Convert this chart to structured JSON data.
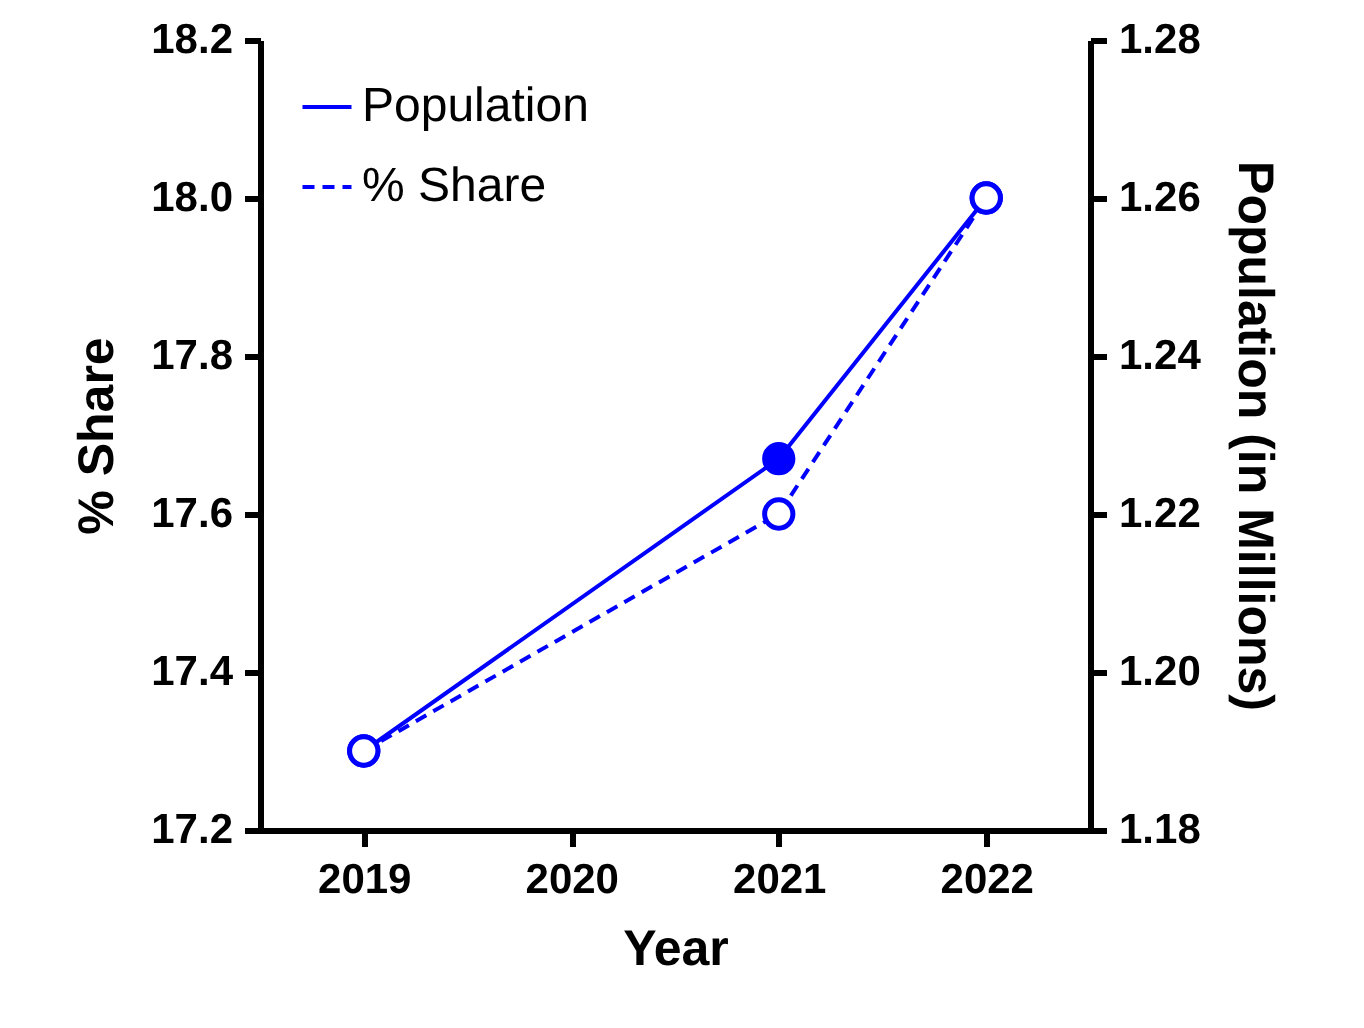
{
  "chart_data": {
    "type": "line",
    "xlabel": "Year",
    "ylabel": "% Share",
    "y2label": "Population (in Millions)",
    "x": [
      2019,
      2021,
      2022
    ],
    "series": [
      {
        "name": "Population",
        "color": "#0000ff",
        "axis": "y2",
        "line_style": "solid",
        "values": [
          1.19,
          1.227,
          1.26
        ]
      },
      {
        "name": "% Share",
        "color": "#0000ff",
        "line_style": "dashed",
        "values": [
          17.3,
          17.6,
          18.0
        ]
      }
    ],
    "xlim": [
      2018.5,
      2022.5
    ],
    "xticks": [
      2019,
      2020,
      2021,
      2022
    ],
    "ylim": [
      17.2,
      18.2
    ],
    "yticks": [
      17.2,
      17.4,
      17.6,
      17.8,
      {
        "value": 18,
        "label": "18.0"
      },
      18.2
    ],
    "y2lim": [
      1.18,
      1.28
    ],
    "y2ticks": [
      1.18,
      {
        "value": 1.2,
        "label": "1.20"
      },
      1.22,
      1.24,
      1.26,
      1.28
    ],
    "marker": "circle",
    "legend": "top left",
    "grid": false
  }
}
